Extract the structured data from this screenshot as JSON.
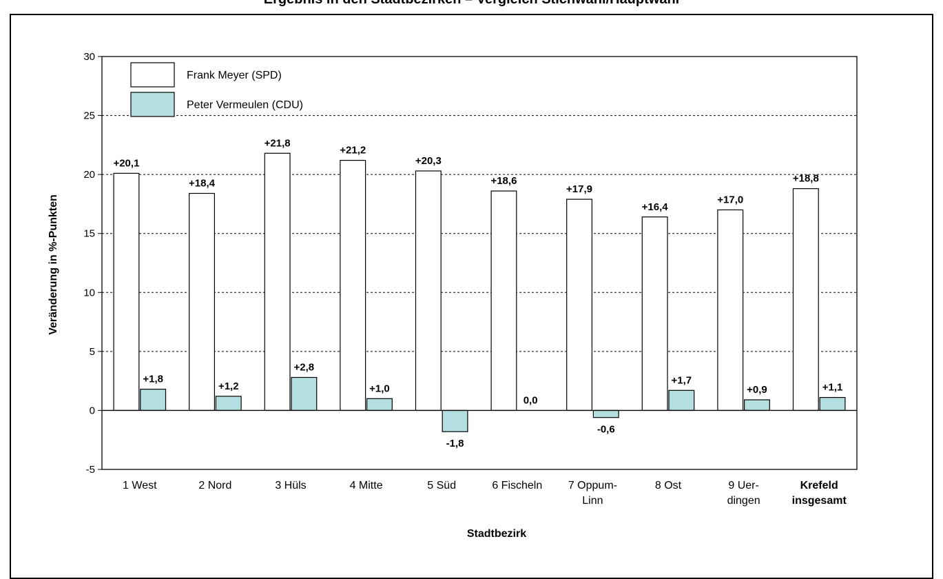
{
  "chart_data": {
    "type": "bar",
    "title": "Ergebnis in den Stadtbezirken – Vergleich Stichwahl/Hauptwahl",
    "xlabel": "Stadtbezirk",
    "ylabel": "Veränderung in %-Punkten",
    "ylim": [
      -5,
      30
    ],
    "yticks": [
      "-5",
      "0",
      "5",
      "10",
      "15",
      "20",
      "25",
      "30"
    ],
    "grid": "horizontal dashed",
    "legend_position": "top-left",
    "categories": [
      [
        "1 West"
      ],
      [
        "2 Nord"
      ],
      [
        "3 Hüls"
      ],
      [
        "4 Mitte"
      ],
      [
        "5 Süd"
      ],
      [
        "6 Fischeln"
      ],
      [
        "7 Oppum-",
        "Linn"
      ],
      [
        "8 Ost"
      ],
      [
        "9 Uer-",
        "dingen"
      ],
      [
        "Krefeld",
        "insgesamt"
      ]
    ],
    "category_bold": [
      false,
      false,
      false,
      false,
      false,
      false,
      false,
      false,
      false,
      true
    ],
    "series": [
      {
        "name": "Frank Meyer (SPD)",
        "color": "#ffffff",
        "values": [
          20.1,
          18.4,
          21.8,
          21.2,
          20.3,
          18.6,
          17.9,
          16.4,
          17.0,
          18.8
        ],
        "labels": [
          "+20,1",
          "+18,4",
          "+21,8",
          "+21,2",
          "+20,3",
          "+18,6",
          "+17,9",
          "+16,4",
          "+17,0",
          "+18,8"
        ]
      },
      {
        "name": "Peter Vermeulen (CDU)",
        "color": "#b4dfe0",
        "values": [
          1.8,
          1.2,
          2.8,
          1.0,
          -1.8,
          0.0,
          -0.6,
          1.7,
          0.9,
          1.1
        ],
        "labels": [
          "+1,8",
          "+1,2",
          "+2,8",
          "+1,0",
          "-1,8",
          "0,0",
          "-0,6",
          "+1,7",
          "+0,9",
          "+1,1"
        ]
      }
    ]
  }
}
